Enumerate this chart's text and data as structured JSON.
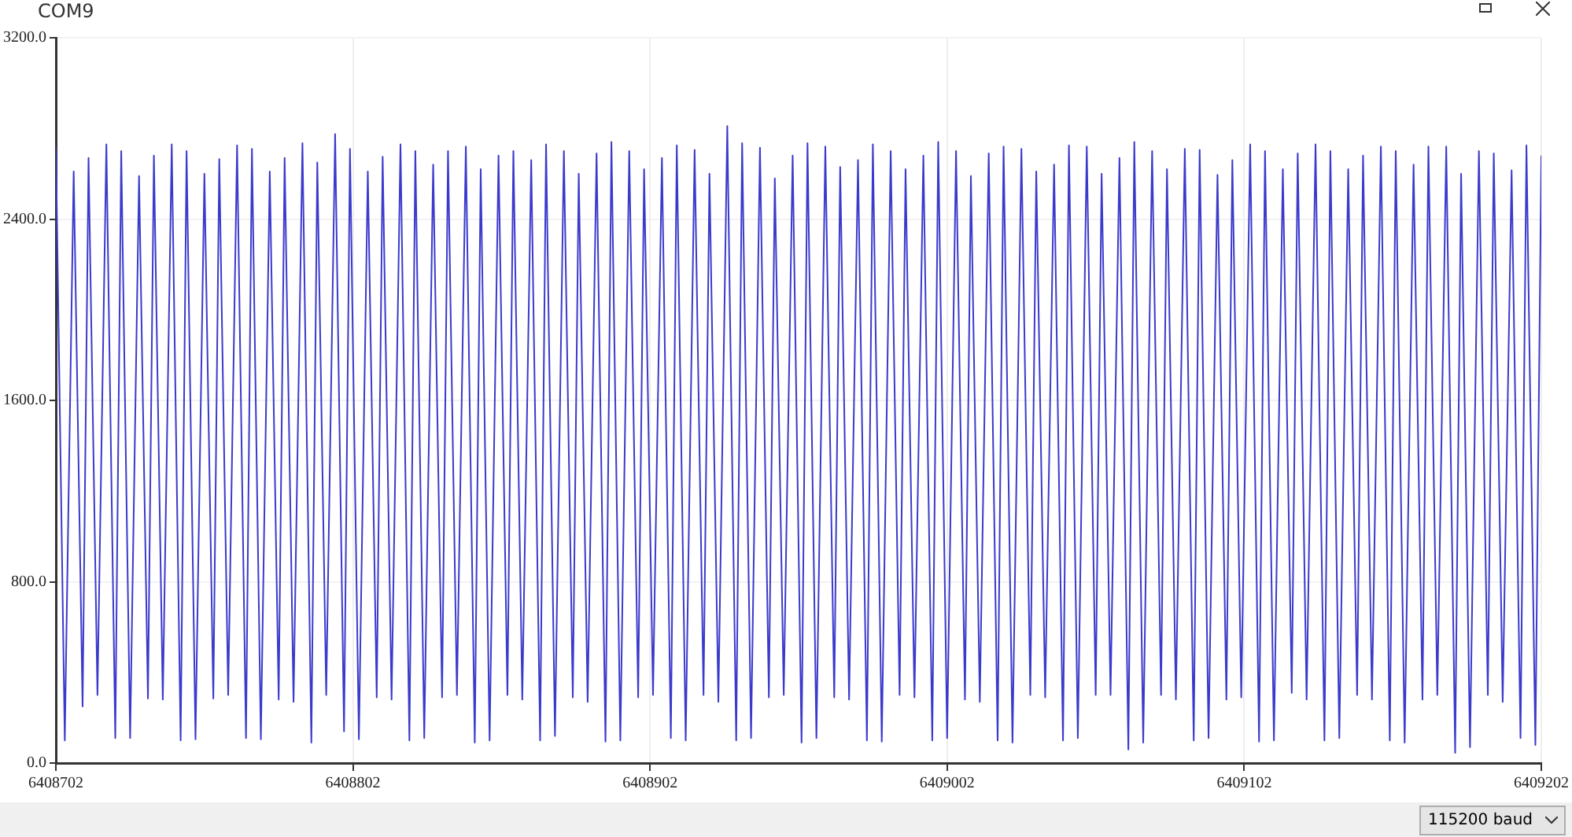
{
  "chart_data": {
    "type": "line",
    "title": "COM9",
    "color": "#3a3acc",
    "marker": "none",
    "grid": true,
    "legend": false,
    "xlim": [
      6408702,
      6409202
    ],
    "ylim": [
      0,
      3200
    ],
    "xticks": [
      6408702,
      6408802,
      6408902,
      6409002,
      6409102,
      6409202
    ],
    "yticks": [
      {
        "value": 0,
        "label": "0.0"
      },
      {
        "value": 800,
        "label": "800.0"
      },
      {
        "value": 1600,
        "label": "1600.0"
      },
      {
        "value": 2400,
        "label": "2400.0"
      },
      {
        "value": 3200,
        "label": "3200.0"
      }
    ],
    "annotations": [
      "115200 baud"
    ],
    "x": [
      6408702,
      6408705,
      6408708,
      6408711,
      6408713,
      6408716,
      6408719,
      6408722,
      6408724,
      6408727,
      6408730,
      6408733,
      6408735,
      6408738,
      6408741,
      6408744,
      6408746,
      6408749,
      6408752,
      6408755,
      6408757,
      6408760,
      6408763,
      6408766,
      6408768,
      6408771,
      6408774,
      6408777,
      6408779,
      6408782,
      6408785,
      6408788,
      6408790,
      6408793,
      6408796,
      6408799,
      6408801,
      6408804,
      6408807,
      6408810,
      6408812,
      6408815,
      6408818,
      6408821,
      6408823,
      6408826,
      6408829,
      6408832,
      6408834,
      6408837,
      6408840,
      6408843,
      6408845,
      6408848,
      6408851,
      6408854,
      6408856,
      6408859,
      6408862,
      6408865,
      6408867,
      6408870,
      6408873,
      6408876,
      6408878,
      6408881,
      6408884,
      6408887,
      6408889,
      6408892,
      6408895,
      6408898,
      6408900,
      6408903,
      6408906,
      6408909,
      6408911,
      6408914,
      6408917,
      6408920,
      6408922,
      6408925,
      6408928,
      6408931,
      6408933,
      6408936,
      6408939,
      6408942,
      6408944,
      6408947,
      6408950,
      6408953,
      6408955,
      6408958,
      6408961,
      6408964,
      6408966,
      6408969,
      6408972,
      6408975,
      6408977,
      6408980,
      6408983,
      6408986,
      6408988,
      6408991,
      6408994,
      6408997,
      6408999,
      6409002,
      6409005,
      6409008,
      6409010,
      6409013,
      6409016,
      6409019,
      6409021,
      6409024,
      6409027,
      6409030,
      6409032,
      6409035,
      6409038,
      6409041,
      6409043,
      6409046,
      6409049,
      6409052,
      6409054,
      6409057,
      6409060,
      6409063,
      6409065,
      6409068,
      6409071,
      6409074,
      6409076,
      6409079,
      6409082,
      6409085,
      6409087,
      6409090,
      6409093,
      6409096,
      6409098,
      6409101,
      6409104,
      6409107,
      6409109,
      6409112,
      6409115,
      6409118,
      6409120,
      6409123,
      6409126,
      6409129,
      6409131,
      6409134,
      6409137,
      6409140,
      6409142,
      6409145,
      6409148,
      6409151,
      6409153,
      6409156,
      6409159,
      6409162,
      6409164,
      6409167,
      6409170,
      6409173,
      6409175,
      6409178,
      6409181,
      6409184,
      6409186,
      6409189,
      6409192,
      6409195,
      6409197,
      6409200,
      6409202
    ],
    "values": [
      2720,
      100,
      2610,
      250,
      2670,
      300,
      2730,
      110,
      2700,
      110,
      2590,
      285,
      2680,
      280,
      2730,
      100,
      2700,
      105,
      2600,
      285,
      2665,
      300,
      2725,
      110,
      2710,
      105,
      2610,
      280,
      2670,
      270,
      2735,
      90,
      2650,
      300,
      2775,
      140,
      2710,
      105,
      2610,
      290,
      2675,
      280,
      2730,
      100,
      2700,
      110,
      2640,
      290,
      2700,
      300,
      2720,
      90,
      2620,
      100,
      2680,
      300,
      2700,
      280,
      2660,
      100,
      2730,
      120,
      2700,
      290,
      2600,
      270,
      2690,
      95,
      2740,
      100,
      2700,
      290,
      2620,
      300,
      2670,
      110,
      2725,
      100,
      2705,
      300,
      2600,
      270,
      2810,
      100,
      2735,
      110,
      2715,
      290,
      2580,
      300,
      2680,
      90,
      2735,
      110,
      2720,
      290,
      2630,
      280,
      2660,
      100,
      2730,
      95,
      2700,
      300,
      2620,
      290,
      2680,
      100,
      2740,
      110,
      2700,
      280,
      2590,
      270,
      2690,
      100,
      2720,
      90,
      2710,
      300,
      2610,
      290,
      2640,
      100,
      2725,
      110,
      2720,
      300,
      2600,
      300,
      2670,
      60,
      2740,
      90,
      2700,
      300,
      2620,
      280,
      2710,
      100,
      2705,
      110,
      2595,
      280,
      2660,
      290,
      2730,
      95,
      2700,
      100,
      2620,
      310,
      2690,
      280,
      2730,
      100,
      2700,
      110,
      2620,
      300,
      2680,
      280,
      2720,
      100,
      2700,
      90,
      2640,
      280,
      2720,
      300,
      2720,
      45,
      2600,
      70,
      2700,
      300,
      2690,
      270,
      2615,
      110,
      2725,
      80,
      2680
    ]
  }
}
